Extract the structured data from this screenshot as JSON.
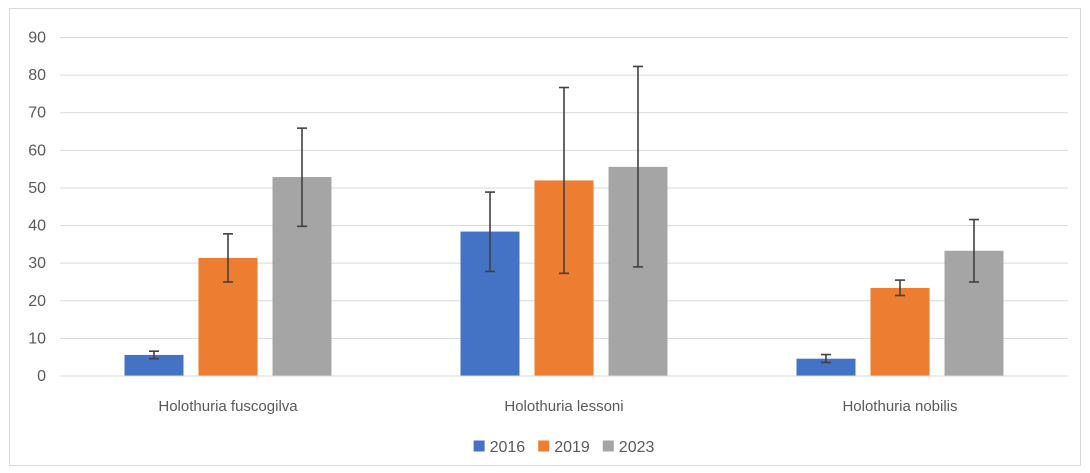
{
  "chart_data": {
    "type": "bar",
    "categories": [
      "Holothuria fuscogilva",
      "Holothuria lessoni",
      "Holothuria nobilis"
    ],
    "series": [
      {
        "name": "2016",
        "color": "#4472c4",
        "values": [
          5.6,
          38.4,
          4.6
        ],
        "error_low": [
          4.6,
          27.8,
          3.6
        ],
        "error_high": [
          6.6,
          48.9,
          5.7
        ]
      },
      {
        "name": "2019",
        "color": "#ed7d31",
        "values": [
          31.4,
          52.0,
          23.4
        ],
        "error_low": [
          25.0,
          27.3,
          21.4
        ],
        "error_high": [
          37.8,
          76.7,
          25.5
        ]
      },
      {
        "name": "2023",
        "color": "#a5a5a5",
        "values": [
          52.9,
          55.6,
          33.3
        ],
        "error_low": [
          39.8,
          29.0,
          25.0
        ],
        "error_high": [
          65.9,
          82.3,
          41.6
        ]
      }
    ],
    "y_ticks": [
      "0",
      "10",
      "20",
      "30",
      "40",
      "50",
      "60",
      "70",
      "80",
      "90"
    ],
    "ylim": [
      0,
      90
    ],
    "grid": true,
    "legend_position": "bottom",
    "title": "",
    "xlabel": "",
    "ylabel": ""
  }
}
